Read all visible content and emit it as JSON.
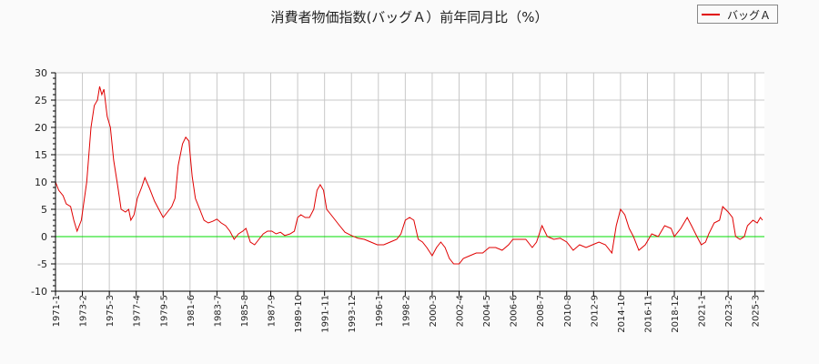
{
  "chart_data": {
    "type": "line",
    "title": "消費者物価指数(バッグＡ）前年同月比（%）",
    "xlabel": "",
    "ylabel": "",
    "ylim": [
      -10,
      30
    ],
    "yticks": [
      30,
      25,
      20,
      15,
      10,
      5,
      0,
      -5,
      -10
    ],
    "grid": true,
    "legend_position": "top-right",
    "x_tick_labels": [
      "1971-1",
      "1973-2",
      "1975-3",
      "1977-4",
      "1979-5",
      "1981-6",
      "1983-7",
      "1985-8",
      "1987-9",
      "1989-10",
      "1991-11",
      "1993-12",
      "1996-1",
      "1998-2",
      "2000-3",
      "2002-4",
      "2004-5",
      "2006-6",
      "2008-7",
      "2010-8",
      "2012-9",
      "2014-10",
      "2016-11",
      "2018-12",
      "2021-1",
      "2023-2",
      "2025-3"
    ],
    "series": [
      {
        "name": "バッグＡ",
        "color": "#e00000",
        "points": [
          [
            "1971-1",
            10
          ],
          [
            "1971-4",
            8.5
          ],
          [
            "1971-8",
            7.5
          ],
          [
            "1971-11",
            6
          ],
          [
            "1972-3",
            5.5
          ],
          [
            "1972-6",
            3
          ],
          [
            "1972-9",
            1
          ],
          [
            "1973-1",
            3
          ],
          [
            "1973-6",
            10
          ],
          [
            "1973-10",
            20
          ],
          [
            "1974-1",
            24
          ],
          [
            "1974-4",
            25
          ],
          [
            "1974-6",
            27.5
          ],
          [
            "1974-8",
            26
          ],
          [
            "1974-10",
            27
          ],
          [
            "1975-1",
            22
          ],
          [
            "1975-4",
            20
          ],
          [
            "1975-7",
            14
          ],
          [
            "1975-11",
            9
          ],
          [
            "1976-2",
            5
          ],
          [
            "1976-6",
            4.5
          ],
          [
            "1976-9",
            5
          ],
          [
            "1976-11",
            3
          ],
          [
            "1977-2",
            4
          ],
          [
            "1977-5",
            7
          ],
          [
            "1977-9",
            9
          ],
          [
            "1977-12",
            10.8
          ],
          [
            "1978-4",
            9
          ],
          [
            "1978-9",
            6.5
          ],
          [
            "1979-1",
            5
          ],
          [
            "1979-5",
            3.5
          ],
          [
            "1979-9",
            4.5
          ],
          [
            "1980-1",
            5.5
          ],
          [
            "1980-4",
            7
          ],
          [
            "1980-7",
            13
          ],
          [
            "1980-11",
            17
          ],
          [
            "1981-2",
            18.2
          ],
          [
            "1981-5",
            17.5
          ],
          [
            "1981-8",
            11
          ],
          [
            "1981-11",
            7
          ],
          [
            "1982-3",
            5
          ],
          [
            "1982-7",
            3
          ],
          [
            "1982-11",
            2.5
          ],
          [
            "1983-3",
            2.8
          ],
          [
            "1983-7",
            3.2
          ],
          [
            "1983-11",
            2.5
          ],
          [
            "1984-3",
            2
          ],
          [
            "1984-7",
            1
          ],
          [
            "1984-11",
            -0.5
          ],
          [
            "1985-3",
            0.5
          ],
          [
            "1985-7",
            1
          ],
          [
            "1985-10",
            1.5
          ],
          [
            "1986-2",
            -1
          ],
          [
            "1986-6",
            -1.5
          ],
          [
            "1986-10",
            -0.5
          ],
          [
            "1987-2",
            0.5
          ],
          [
            "1987-6",
            1
          ],
          [
            "1987-10",
            1
          ],
          [
            "1988-2",
            0.5
          ],
          [
            "1988-6",
            0.8
          ],
          [
            "1988-10",
            0.2
          ],
          [
            "1989-3",
            0.5
          ],
          [
            "1989-7",
            1
          ],
          [
            "1989-10",
            3.5
          ],
          [
            "1990-1",
            4
          ],
          [
            "1990-5",
            3.5
          ],
          [
            "1990-9",
            3.5
          ],
          [
            "1991-1",
            5
          ],
          [
            "1991-4",
            8.5
          ],
          [
            "1991-7",
            9.5
          ],
          [
            "1991-10",
            8.5
          ],
          [
            "1992-1",
            5
          ],
          [
            "1992-5",
            4
          ],
          [
            "1992-9",
            3
          ],
          [
            "1993-1",
            2
          ],
          [
            "1993-6",
            0.8
          ],
          [
            "1993-12",
            0.2
          ],
          [
            "1994-6",
            -0.3
          ],
          [
            "1994-12",
            -0.5
          ],
          [
            "1995-6",
            -1
          ],
          [
            "1995-12",
            -1.5
          ],
          [
            "1996-6",
            -1.5
          ],
          [
            "1996-12",
            -1
          ],
          [
            "1997-6",
            -0.5
          ],
          [
            "1997-10",
            0.5
          ],
          [
            "1998-2",
            3
          ],
          [
            "1998-6",
            3.5
          ],
          [
            "1998-10",
            3
          ],
          [
            "1999-2",
            -0.5
          ],
          [
            "1999-6",
            -1
          ],
          [
            "1999-10",
            -2
          ],
          [
            "2000-3",
            -3.5
          ],
          [
            "2000-7",
            -2
          ],
          [
            "2000-11",
            -1
          ],
          [
            "2001-3",
            -2
          ],
          [
            "2001-7",
            -4
          ],
          [
            "2001-11",
            -5
          ],
          [
            "2002-4",
            -5
          ],
          [
            "2002-8",
            -4
          ],
          [
            "2003-2",
            -3.5
          ],
          [
            "2003-8",
            -3
          ],
          [
            "2004-2",
            -3
          ],
          [
            "2004-8",
            -2
          ],
          [
            "2005-2",
            -2
          ],
          [
            "2005-8",
            -2.5
          ],
          [
            "2006-2",
            -1.5
          ],
          [
            "2006-6",
            -0.5
          ],
          [
            "2006-12",
            -0.5
          ],
          [
            "2007-6",
            -0.5
          ],
          [
            "2007-12",
            -2
          ],
          [
            "2008-4",
            -1
          ],
          [
            "2008-9",
            2
          ],
          [
            "2009-2",
            0
          ],
          [
            "2009-8",
            -0.5
          ],
          [
            "2010-2",
            -0.3
          ],
          [
            "2010-8",
            -1
          ],
          [
            "2011-2",
            -2.5
          ],
          [
            "2011-8",
            -1.5
          ],
          [
            "2012-2",
            -2
          ],
          [
            "2012-8",
            -1.5
          ],
          [
            "2013-2",
            -1
          ],
          [
            "2013-8",
            -1.5
          ],
          [
            "2014-2",
            -3
          ],
          [
            "2014-6",
            2
          ],
          [
            "2014-10",
            5
          ],
          [
            "2015-2",
            4
          ],
          [
            "2015-6",
            1.5
          ],
          [
            "2015-10",
            0
          ],
          [
            "2016-3",
            -2.5
          ],
          [
            "2016-9",
            -1.5
          ],
          [
            "2017-3",
            0.5
          ],
          [
            "2017-9",
            0
          ],
          [
            "2018-3",
            2
          ],
          [
            "2018-9",
            1.5
          ],
          [
            "2018-12",
            0
          ],
          [
            "2019-6",
            1.5
          ],
          [
            "2019-12",
            3.5
          ],
          [
            "2020-4",
            2
          ],
          [
            "2020-9",
            0
          ],
          [
            "2021-1",
            -1.5
          ],
          [
            "2021-5",
            -1
          ],
          [
            "2021-8",
            0.5
          ],
          [
            "2022-1",
            2.5
          ],
          [
            "2022-6",
            3
          ],
          [
            "2022-9",
            5.5
          ],
          [
            "2023-2",
            4.5
          ],
          [
            "2023-6",
            3.5
          ],
          [
            "2023-9",
            0
          ],
          [
            "2024-1",
            -0.5
          ],
          [
            "2024-5",
            0
          ],
          [
            "2024-8",
            2
          ],
          [
            "2025-1",
            3
          ],
          [
            "2025-5",
            2.5
          ],
          [
            "2025-8",
            3.5
          ],
          [
            "2025-10",
            3
          ]
        ]
      }
    ],
    "reference_lines": [
      {
        "y": 0,
        "color": "#00dd00"
      }
    ]
  },
  "legend": {
    "label": "バッグＡ",
    "color": "#e00000"
  }
}
